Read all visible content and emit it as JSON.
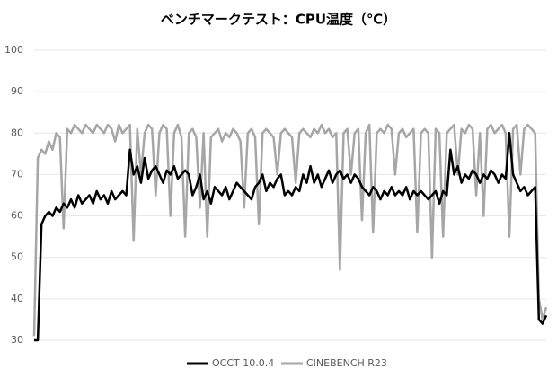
{
  "chart_data": {
    "type": "line",
    "title": "ベンチマークテスト：CPU温度（℃）",
    "ylim": [
      30,
      100
    ],
    "yticks": [
      30,
      40,
      50,
      60,
      70,
      80,
      90,
      100
    ],
    "grid": true,
    "legend": "bottom",
    "series": [
      {
        "name": "OCCT 10.0.4",
        "color": "#000000",
        "values": [
          30,
          30,
          58,
          60,
          61,
          60,
          62,
          61,
          63,
          62,
          64,
          62,
          65,
          63,
          64,
          65,
          63,
          66,
          64,
          65,
          63,
          66,
          64,
          65,
          66,
          65,
          76,
          70,
          72,
          68,
          74,
          69,
          71,
          72,
          70,
          68,
          71,
          70,
          72,
          69,
          70,
          71,
          70,
          65,
          67,
          70,
          64,
          66,
          63,
          67,
          66,
          65,
          67,
          64,
          66,
          68,
          67,
          66,
          65,
          64,
          67,
          68,
          70,
          66,
          68,
          67,
          69,
          70,
          65,
          66,
          65,
          67,
          66,
          70,
          68,
          72,
          68,
          70,
          67,
          69,
          71,
          68,
          70,
          71,
          69,
          70,
          68,
          70,
          69,
          67,
          66,
          65,
          67,
          66,
          64,
          66,
          65,
          67,
          65,
          66,
          65,
          67,
          64,
          66,
          65,
          66,
          65,
          64,
          65,
          66,
          63,
          66,
          65,
          76,
          70,
          72,
          68,
          70,
          69,
          71,
          70,
          68,
          70,
          69,
          71,
          70,
          68,
          70,
          69,
          80,
          70,
          68,
          66,
          67,
          65,
          66,
          67,
          35,
          34,
          36
        ]
      },
      {
        "name": "CINEBENCH R23",
        "color": "#a6a6a6",
        "values": [
          31,
          74,
          76,
          75,
          78,
          76,
          80,
          79,
          57,
          81,
          80,
          82,
          81,
          80,
          82,
          81,
          80,
          82,
          81,
          80,
          82,
          81,
          78,
          82,
          80,
          81,
          82,
          54,
          81,
          70,
          80,
          82,
          81,
          65,
          80,
          82,
          81,
          60,
          80,
          82,
          79,
          55,
          80,
          81,
          79,
          62,
          80,
          55,
          79,
          80,
          81,
          78,
          80,
          79,
          81,
          80,
          78,
          62,
          80,
          81,
          79,
          58,
          80,
          81,
          80,
          79,
          70,
          80,
          81,
          80,
          79,
          68,
          80,
          81,
          80,
          79,
          81,
          80,
          82,
          80,
          81,
          79,
          80,
          47,
          80,
          81,
          70,
          80,
          81,
          59,
          80,
          82,
          56,
          80,
          81,
          80,
          82,
          81,
          70,
          80,
          81,
          79,
          80,
          81,
          56,
          80,
          81,
          80,
          50,
          81,
          80,
          55,
          80,
          81,
          82,
          70,
          81,
          80,
          82,
          81,
          65,
          80,
          60,
          81,
          82,
          80,
          81,
          82,
          80,
          55,
          81,
          82,
          70,
          81,
          82,
          81,
          80,
          40,
          35,
          38
        ]
      }
    ]
  }
}
